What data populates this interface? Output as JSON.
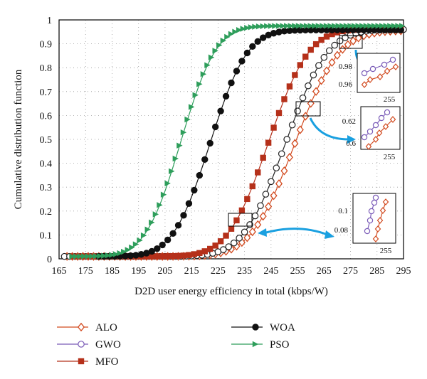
{
  "chart_data": {
    "type": "line",
    "xlabel": "D2D user energy efficiency in total (kbps/W)",
    "ylabel": "Cumulative distribution function",
    "xlim": [
      165,
      295
    ],
    "ylim": [
      0,
      1
    ],
    "xticks": [
      165,
      175,
      185,
      195,
      205,
      215,
      225,
      235,
      245,
      255,
      265,
      275,
      285,
      295
    ],
    "yticks": [
      0,
      0.1,
      0.2,
      0.3,
      0.4,
      0.5,
      0.6,
      0.7,
      0.8,
      0.9,
      1
    ],
    "grid": "dotted",
    "legend_position": "below",
    "series": [
      {
        "name": "ALO",
        "color": "#d24a1f",
        "marker": "diamond-open",
        "params": {
          "mu": 254,
          "sigma": 13,
          "max": 0.955,
          "start": 168,
          "end": 295,
          "step": 2
        }
      },
      {
        "name": "GWO",
        "color": "#222222",
        "marker": "circle-open",
        "params": {
          "mu": 250.5,
          "sigma": 12.5,
          "max": 0.96,
          "start": 167,
          "end": 295,
          "step": 2
        }
      },
      {
        "name": "MFO",
        "color": "#b5301a",
        "marker": "square",
        "params": {
          "mu": 244,
          "sigma": 12,
          "max": 0.962,
          "start": 170,
          "end": 295,
          "step": 2
        }
      },
      {
        "name": "WOA",
        "color": "#111111",
        "marker": "circle",
        "params": {
          "mu": 222,
          "sigma": 11,
          "max": 0.958,
          "start": 180,
          "end": 295,
          "step": 2
        }
      },
      {
        "name": "PSO",
        "color": "#2e9e5b",
        "marker": "triangle-right",
        "params": {
          "mu": 211,
          "sigma": 10.5,
          "max": 0.975,
          "start": 170,
          "end": 295,
          "step": 1.5
        }
      }
    ],
    "insets": [
      {
        "ticks": [
          "0.98",
          "0.96"
        ],
        "xtick": "255"
      },
      {
        "ticks": [
          "0.62",
          "0.6"
        ],
        "xtick": "255"
      },
      {
        "ticks": [
          "0.1",
          "0.08"
        ],
        "xtick": "255"
      }
    ],
    "legend": [
      {
        "label": "ALO"
      },
      {
        "label": "GWO"
      },
      {
        "label": "MFO"
      },
      {
        "label": "WOA"
      },
      {
        "label": "PSO"
      }
    ]
  }
}
